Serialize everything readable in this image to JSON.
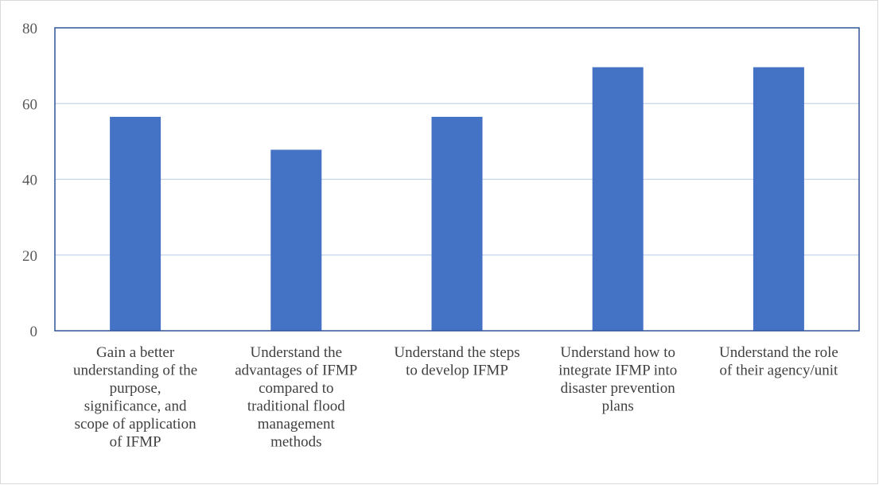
{
  "chart_data": {
    "type": "bar",
    "title": "",
    "xlabel": "",
    "ylabel": "",
    "categories": [
      [
        "Gain a better",
        "understanding of the",
        "purpose,",
        "significance, and",
        "scope of application",
        "of IFMP"
      ],
      [
        "Understand the",
        "advantages of IFMP",
        "compared to",
        "traditional flood",
        "management",
        "methods"
      ],
      [
        "Understand the steps",
        "to develop IFMP"
      ],
      [
        "Understand how to",
        "integrate IFMP into",
        "disaster prevention",
        "plans"
      ],
      [
        "Understand the role",
        "of their agency/unit"
      ]
    ],
    "values": [
      56.5,
      47.8,
      56.5,
      69.6,
      69.6
    ],
    "ylim": [
      0,
      80
    ],
    "yticks": [
      "0",
      "20",
      "40",
      "60",
      "80"
    ],
    "grid": true,
    "legend": "none",
    "colors": {
      "bar": "#4472c4",
      "grid": "#c5d3ea",
      "axis": "#2f5597"
    }
  }
}
